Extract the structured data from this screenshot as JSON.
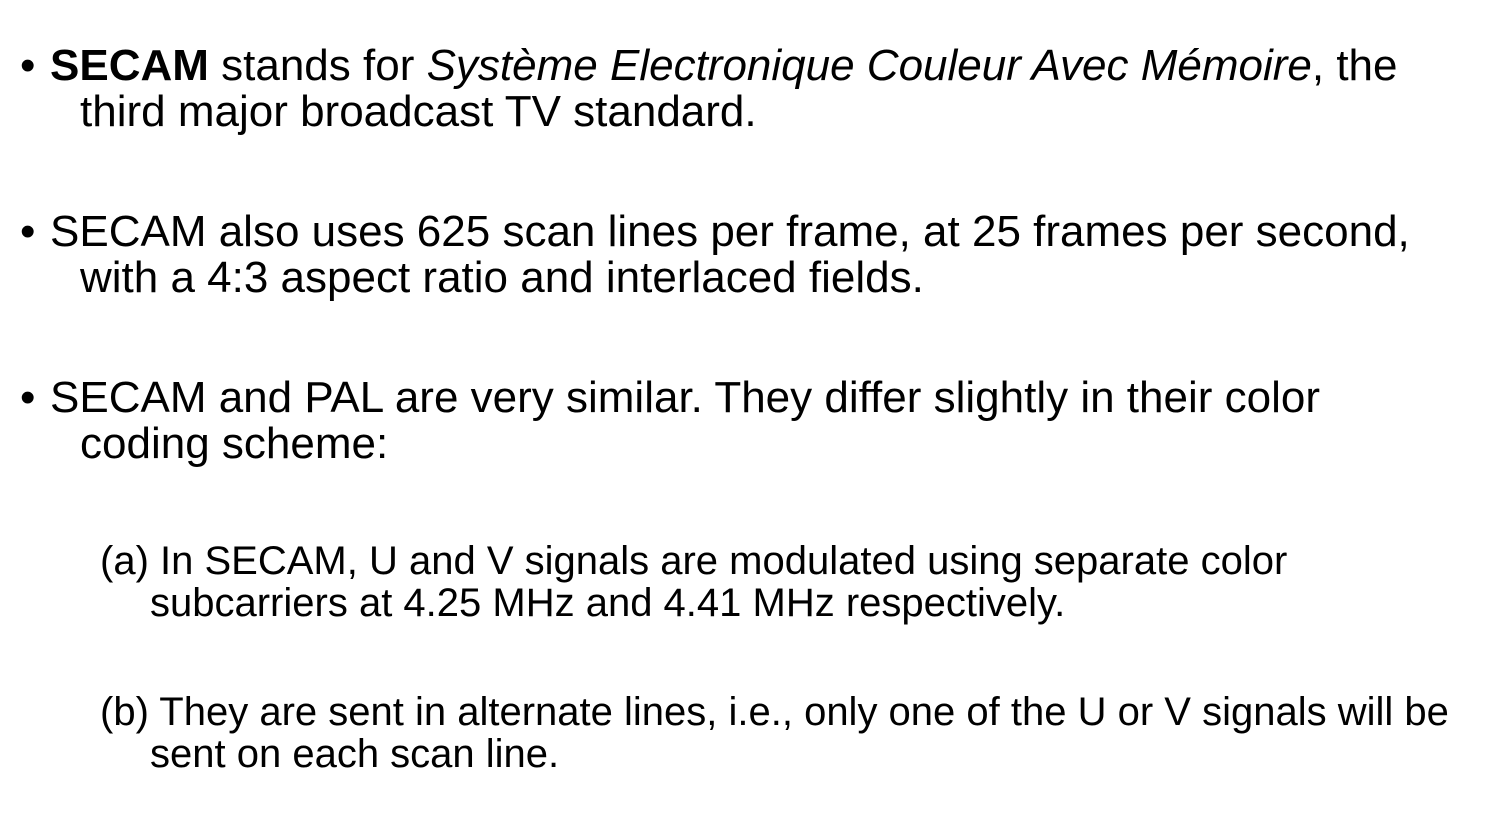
{
  "bullets": [
    {
      "marker": "•",
      "term": "SECAM",
      "text_after_term": " stands for ",
      "italic_name": "Système Electronique Couleur Avec Mémoire",
      "text_end": ", the third major broadcast TV standard."
    },
    {
      "marker": "•",
      "text": "SECAM also uses 625 scan lines per frame, at 25 frames per second, with a 4:3 aspect ratio and interlaced fields."
    },
    {
      "marker": "•",
      "text": "SECAM and PAL are very similar. They differ slightly in their color coding scheme:"
    }
  ],
  "sub_items": [
    {
      "label": "(a)",
      "text": "In SECAM, U and V signals are modulated using separate color subcarriers at 4.25 MHz and 4.41 MHz respectively."
    },
    {
      "label": "(b)",
      "text": "They are sent in alternate lines, i.e., only one of the U or V signals will be sent on each scan line."
    }
  ]
}
